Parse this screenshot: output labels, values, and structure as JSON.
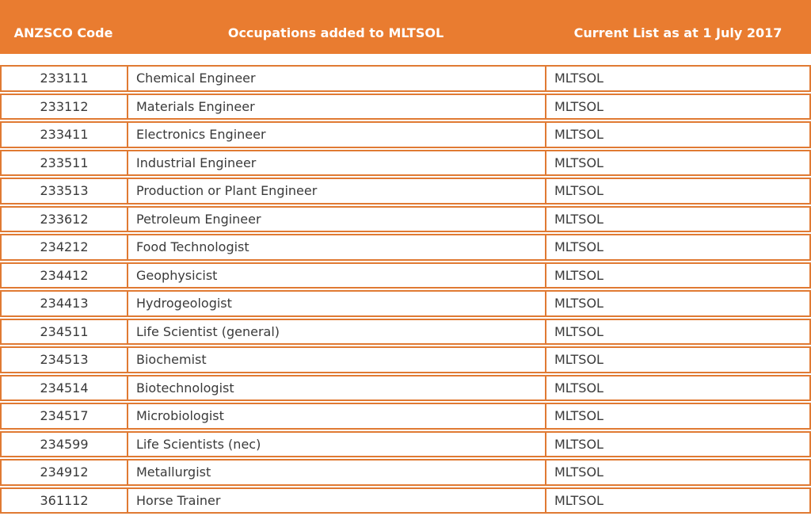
{
  "theme": {
    "header_bg": "#E97C30",
    "border_color": "#E07A33",
    "header_text_color": "#FFFFFF",
    "body_text_color": "#3A3A3A"
  },
  "table": {
    "columns": [
      {
        "key": "code",
        "label": "ANZSCO Code"
      },
      {
        "key": "occupation",
        "label": "Occupations added to MLTSOL"
      },
      {
        "key": "list",
        "label": "Current List as at 1 July 2017"
      }
    ],
    "rows": [
      {
        "code": "233111",
        "occupation": "Chemical Engineer",
        "list": "MLTSOL"
      },
      {
        "code": "233112",
        "occupation": "Materials Engineer",
        "list": "MLTSOL"
      },
      {
        "code": "233411",
        "occupation": "Electronics Engineer",
        "list": "MLTSOL"
      },
      {
        "code": "233511",
        "occupation": "Industrial Engineer",
        "list": "MLTSOL"
      },
      {
        "code": "233513",
        "occupation": "Production or Plant Engineer",
        "list": "MLTSOL"
      },
      {
        "code": "233612",
        "occupation": "Petroleum Engineer",
        "list": "MLTSOL"
      },
      {
        "code": "234212",
        "occupation": "Food Technologist",
        "list": "MLTSOL"
      },
      {
        "code": "234412",
        "occupation": "Geophysicist",
        "list": "MLTSOL"
      },
      {
        "code": "234413",
        "occupation": "Hydrogeologist",
        "list": "MLTSOL"
      },
      {
        "code": "234511",
        "occupation": "Life Scientist (general)",
        "list": "MLTSOL"
      },
      {
        "code": "234513",
        "occupation": "Biochemist",
        "list": "MLTSOL"
      },
      {
        "code": "234514",
        "occupation": "Biotechnologist",
        "list": "MLTSOL"
      },
      {
        "code": "234517",
        "occupation": "Microbiologist",
        "list": "MLTSOL"
      },
      {
        "code": "234599",
        "occupation": "Life Scientists (nec)",
        "list": "MLTSOL"
      },
      {
        "code": "234912",
        "occupation": "Metallurgist",
        "list": "MLTSOL"
      },
      {
        "code": "361112",
        "occupation": "Horse Trainer",
        "list": "MLTSOL"
      }
    ]
  }
}
